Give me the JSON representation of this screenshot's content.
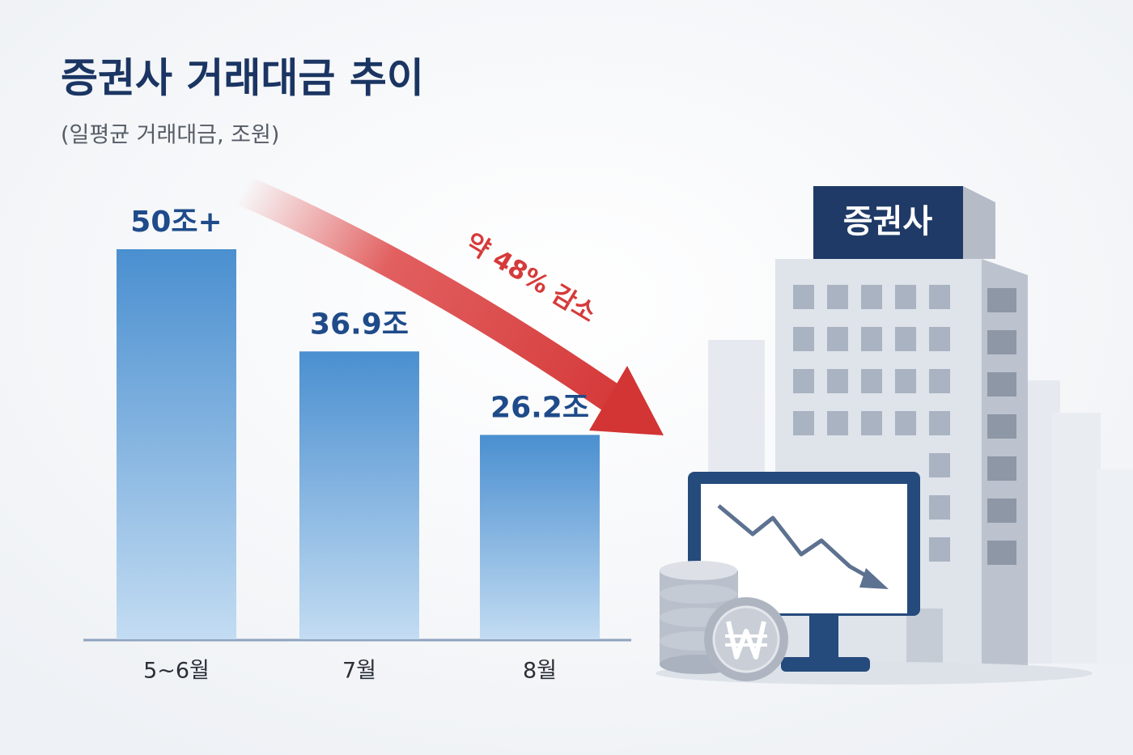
{
  "chart_data": {
    "type": "bar",
    "title": "증권사 거래대금 추이",
    "subtitle": "(일평균 거래대금, 조원)",
    "categories": [
      "5~6월",
      "7월",
      "8월"
    ],
    "values": [
      50,
      36.9,
      26.2
    ],
    "value_labels": [
      "50조+",
      "36.9조",
      "26.2조"
    ],
    "ylim": [
      0,
      50
    ],
    "color": "#4a8fd0",
    "annotation": "약 48% 감소"
  },
  "illustration": {
    "sign": "증권사"
  }
}
